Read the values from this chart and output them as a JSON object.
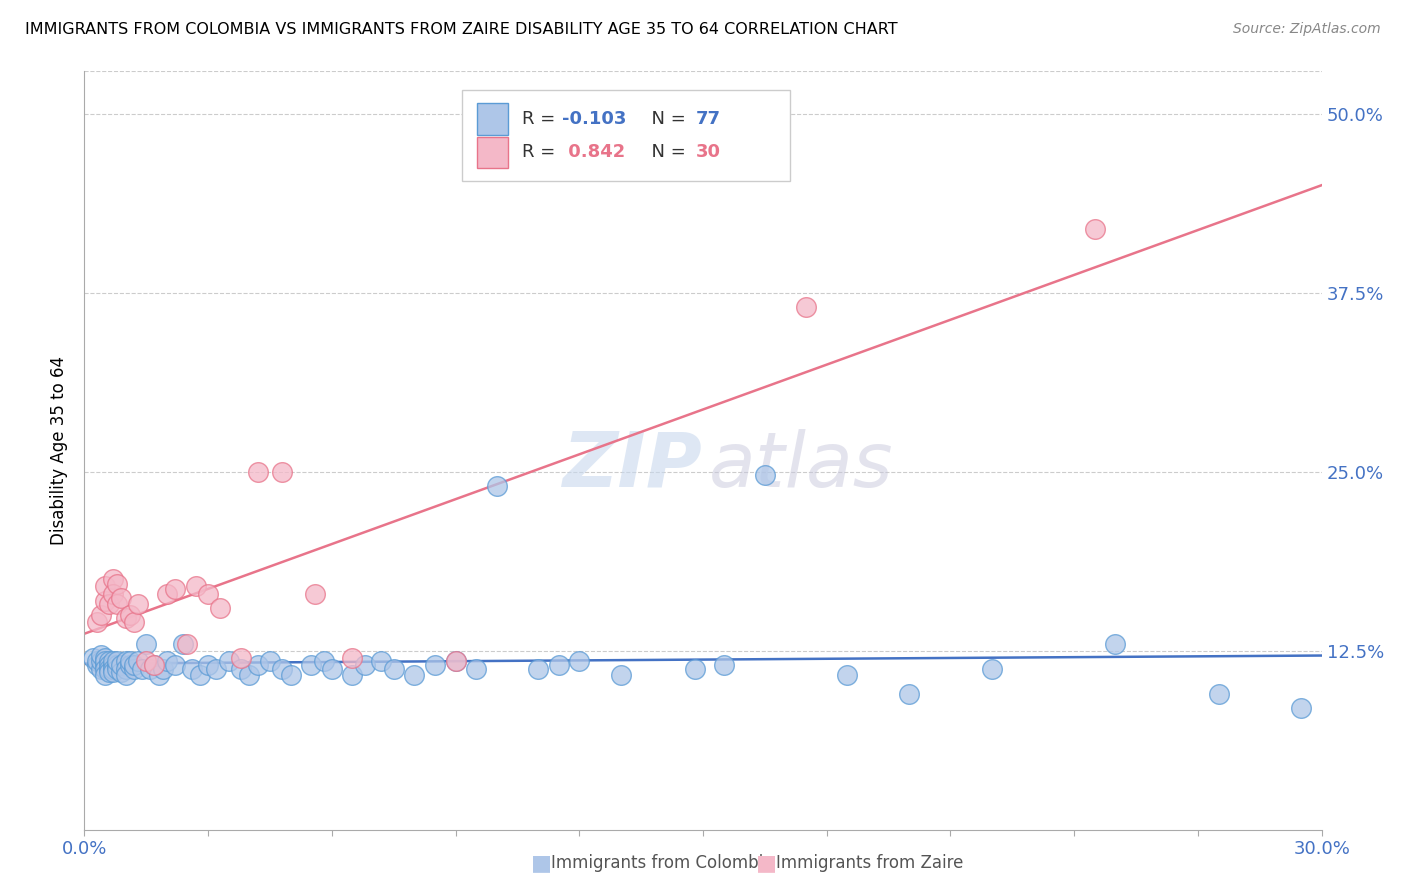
{
  "title": "IMMIGRANTS FROM COLOMBIA VS IMMIGRANTS FROM ZAIRE DISABILITY AGE 35 TO 64 CORRELATION CHART",
  "source": "Source: ZipAtlas.com",
  "ylabel": "Disability Age 35 to 64",
  "ytick_labels": [
    "12.5%",
    "25.0%",
    "37.5%",
    "50.0%"
  ],
  "ytick_values": [
    0.125,
    0.25,
    0.375,
    0.5
  ],
  "xmin": 0.0,
  "xmax": 0.3,
  "ymin": 0.0,
  "ymax": 0.53,
  "colombia_color": "#aec6e8",
  "colombia_edge_color": "#5b9bd5",
  "zaire_color": "#f4b8c8",
  "zaire_edge_color": "#e8748a",
  "line_colombia_color": "#4472c4",
  "line_zaire_color": "#e8748a",
  "legend_r_colombia": "-0.103",
  "legend_n_colombia": "77",
  "legend_r_zaire": "0.842",
  "legend_n_zaire": "30",
  "colombia_color_legend": "#aec6e8",
  "zaire_color_legend": "#f4b8c8",
  "colombia_x": [
    0.002,
    0.003,
    0.003,
    0.004,
    0.004,
    0.004,
    0.005,
    0.005,
    0.005,
    0.005,
    0.005,
    0.006,
    0.006,
    0.006,
    0.006,
    0.007,
    0.007,
    0.007,
    0.007,
    0.008,
    0.008,
    0.008,
    0.009,
    0.009,
    0.01,
    0.01,
    0.01,
    0.011,
    0.011,
    0.012,
    0.012,
    0.013,
    0.014,
    0.015,
    0.016,
    0.017,
    0.018,
    0.019,
    0.02,
    0.022,
    0.024,
    0.026,
    0.028,
    0.03,
    0.032,
    0.035,
    0.038,
    0.04,
    0.042,
    0.045,
    0.048,
    0.05,
    0.055,
    0.058,
    0.06,
    0.065,
    0.068,
    0.072,
    0.075,
    0.08,
    0.085,
    0.09,
    0.095,
    0.1,
    0.11,
    0.115,
    0.12,
    0.13,
    0.148,
    0.155,
    0.165,
    0.185,
    0.2,
    0.22,
    0.25,
    0.275,
    0.295
  ],
  "colombia_y": [
    0.12,
    0.115,
    0.118,
    0.112,
    0.118,
    0.122,
    0.115,
    0.12,
    0.118,
    0.112,
    0.108,
    0.118,
    0.115,
    0.112,
    0.11,
    0.115,
    0.118,
    0.112,
    0.11,
    0.115,
    0.112,
    0.118,
    0.11,
    0.115,
    0.118,
    0.112,
    0.108,
    0.115,
    0.118,
    0.112,
    0.115,
    0.118,
    0.112,
    0.13,
    0.112,
    0.115,
    0.108,
    0.112,
    0.118,
    0.115,
    0.13,
    0.112,
    0.108,
    0.115,
    0.112,
    0.118,
    0.112,
    0.108,
    0.115,
    0.118,
    0.112,
    0.108,
    0.115,
    0.118,
    0.112,
    0.108,
    0.115,
    0.118,
    0.112,
    0.108,
    0.115,
    0.118,
    0.112,
    0.24,
    0.112,
    0.115,
    0.118,
    0.108,
    0.112,
    0.115,
    0.248,
    0.108,
    0.095,
    0.112,
    0.13,
    0.095,
    0.085
  ],
  "zaire_x": [
    0.003,
    0.004,
    0.005,
    0.005,
    0.006,
    0.007,
    0.007,
    0.008,
    0.008,
    0.009,
    0.01,
    0.011,
    0.012,
    0.013,
    0.015,
    0.017,
    0.02,
    0.022,
    0.025,
    0.027,
    0.03,
    0.033,
    0.038,
    0.042,
    0.048,
    0.056,
    0.065,
    0.09,
    0.175,
    0.245
  ],
  "zaire_y": [
    0.145,
    0.15,
    0.16,
    0.17,
    0.158,
    0.175,
    0.165,
    0.158,
    0.172,
    0.162,
    0.148,
    0.15,
    0.145,
    0.158,
    0.118,
    0.115,
    0.165,
    0.168,
    0.13,
    0.17,
    0.165,
    0.155,
    0.12,
    0.25,
    0.25,
    0.165,
    0.12,
    0.118,
    0.365,
    0.42
  ]
}
